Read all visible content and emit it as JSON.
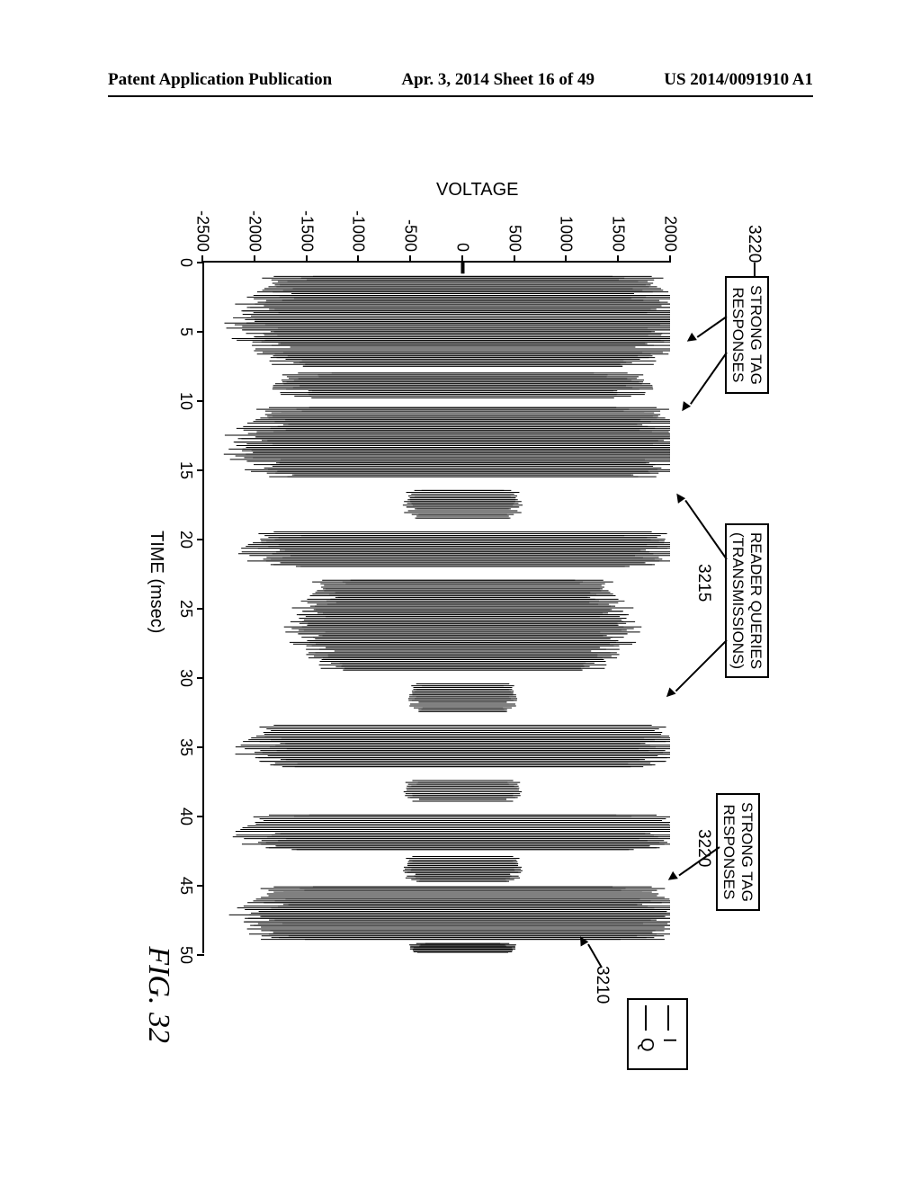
{
  "header": {
    "left": "Patent Application Publication",
    "center": "Apr. 3, 2014  Sheet 16 of 49",
    "right": "US 2014/0091910 A1"
  },
  "chart": {
    "type": "line",
    "xaxis": {
      "title": "TIME (msec)",
      "min": 0,
      "max": 50,
      "step": 5,
      "ticks": [
        0,
        5,
        10,
        15,
        20,
        25,
        30,
        35,
        40,
        45,
        50
      ]
    },
    "yaxis": {
      "title": "VOLTAGE",
      "min": -2500,
      "max": 2000,
      "step": 500,
      "ticks": [
        -2500,
        -2000,
        -1500,
        -1000,
        -500,
        0,
        500,
        1000,
        1500,
        2000
      ]
    },
    "legend": {
      "items": [
        {
          "label": "I",
          "color": "#000000"
        },
        {
          "label": "Q",
          "color": "#000000"
        }
      ]
    },
    "bursts": [
      {
        "t0": 1.0,
        "t1": 7.5,
        "ampI": 2000,
        "ampQ": 1950,
        "kind": "tag"
      },
      {
        "t0": 8.0,
        "t1": 9.8,
        "ampI": 1750,
        "ampQ": 1700,
        "kind": "query"
      },
      {
        "t0": 10.5,
        "t1": 15.5,
        "ampI": 2050,
        "ampQ": 2000,
        "kind": "tag"
      },
      {
        "t0": 16.5,
        "t1": 18.5,
        "ampI": 550,
        "ampQ": 500,
        "kind": "query"
      },
      {
        "t0": 19.5,
        "t1": 22.0,
        "ampI": 2000,
        "ampQ": 1950,
        "kind": "tag"
      },
      {
        "t0": 23.0,
        "t1": 29.5,
        "ampI": 1500,
        "ampQ": 1450,
        "kind": "query"
      },
      {
        "t0": 30.5,
        "t1": 32.5,
        "ampI": 500,
        "ampQ": 480,
        "kind": "query"
      },
      {
        "t0": 33.5,
        "t1": 36.5,
        "ampI": 2000,
        "ampQ": 1950,
        "kind": "tag"
      },
      {
        "t0": 37.5,
        "t1": 39.0,
        "ampI": 550,
        "ampQ": 520,
        "kind": "query"
      },
      {
        "t0": 40.0,
        "t1": 42.5,
        "ampI": 2050,
        "ampQ": 2000,
        "kind": "tag"
      },
      {
        "t0": 43.0,
        "t1": 44.8,
        "ampI": 550,
        "ampQ": 520,
        "kind": "query"
      },
      {
        "t0": 45.2,
        "t1": 49.0,
        "ampI": 2000,
        "ampQ": 1950,
        "kind": "tag"
      },
      {
        "t0": 49.3,
        "t1": 50.0,
        "ampI": 500,
        "ampQ": 480,
        "kind": "query"
      }
    ],
    "annotations": {
      "strong_tag_responses": "STRONG TAG\nRESPONSES",
      "reader_queries": "READER QUERIES\n(TRANSMISSIONS)",
      "ref_3210": "3210",
      "ref_3215": "3215",
      "ref_3220": "3220"
    },
    "figure_label": "FIG. 32",
    "colors": {
      "axis": "#000000",
      "trace": "#000000",
      "background": "#ffffff"
    }
  }
}
